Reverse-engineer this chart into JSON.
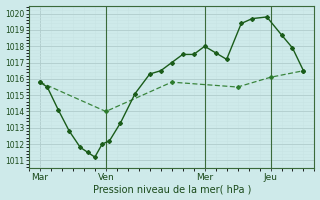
{
  "title": "",
  "xlabel": "Pression niveau de la mer( hPa )",
  "ylabel": "",
  "bg_color": "#ceeaea",
  "grid_color_major": "#b8d8d8",
  "grid_color_minor": "#d8ecec",
  "line1_color": "#1a5c1a",
  "line2_color": "#2a7a2a",
  "ylim": [
    1010.5,
    1020.5
  ],
  "yticks": [
    1011,
    1012,
    1013,
    1014,
    1015,
    1016,
    1017,
    1018,
    1019,
    1020
  ],
  "xlim": [
    -3,
    75
  ],
  "x_tick_positions": [
    0,
    18,
    45,
    63
  ],
  "x_tick_labels": [
    "Mar",
    "Ven",
    "Mer",
    "Jeu"
  ],
  "x_vline_positions": [
    18,
    45,
    63
  ],
  "line1_x": [
    0,
    2,
    5,
    8,
    11,
    13,
    15,
    17,
    19,
    22,
    26,
    30,
    33,
    36,
    39,
    42,
    45,
    48,
    51,
    55,
    58,
    62,
    66,
    69,
    72
  ],
  "line1_y": [
    1015.8,
    1015.5,
    1014.1,
    1012.8,
    1011.8,
    1011.5,
    1011.2,
    1012.0,
    1012.2,
    1013.3,
    1015.1,
    1016.3,
    1016.5,
    1017.0,
    1017.5,
    1017.5,
    1018.0,
    1017.6,
    1017.2,
    1019.4,
    1019.7,
    1019.8,
    1018.7,
    1017.9,
    1016.5
  ],
  "line2_x": [
    0,
    18,
    36,
    54,
    63,
    72
  ],
  "line2_y": [
    1015.8,
    1014.0,
    1015.8,
    1015.5,
    1016.1,
    1016.5
  ]
}
